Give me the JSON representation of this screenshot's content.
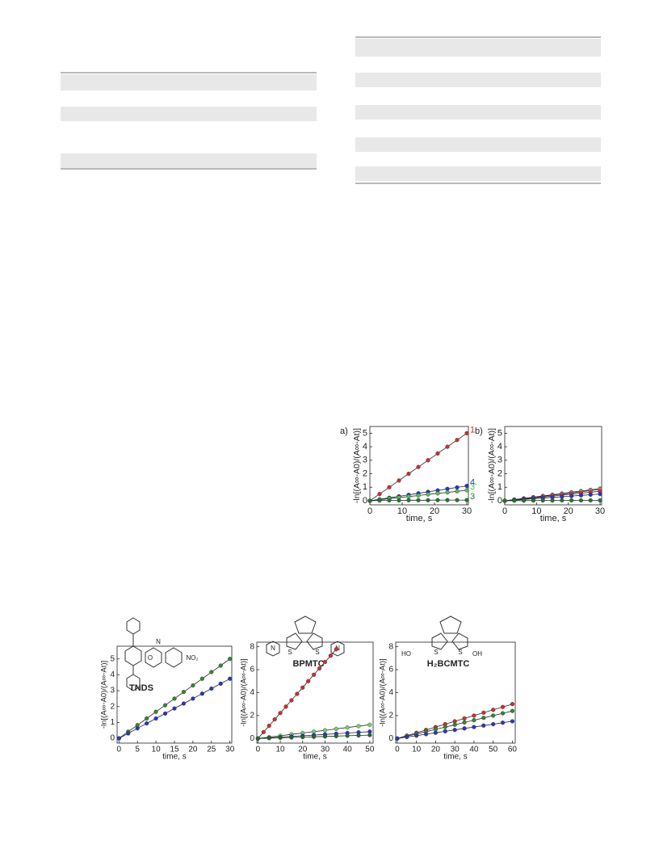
{
  "figure_top": {
    "panels": [
      {
        "type": "line",
        "label": "a)",
        "ylabel": "-ln[(A∞-A0)/(A∞-At)]",
        "xlabel": "time, s",
        "xlim": [
          0,
          30.5
        ],
        "ylim": [
          -0.3,
          5.5
        ],
        "xticks": [
          0,
          10,
          20,
          30
        ],
        "yticks": [
          0,
          1,
          2,
          3,
          4,
          5
        ],
        "series": [
          {
            "name": "1",
            "color": "#d42a2a",
            "x": [
              0,
              3,
              6,
              9,
              12,
              15,
              18,
              21,
              24,
              27,
              30
            ],
            "values": [
              0,
              0.5,
              1.0,
              1.5,
              2.0,
              2.5,
              3.0,
              3.5,
              4.0,
              4.5,
              5.0
            ]
          },
          {
            "name": "4",
            "color": "#2a34c8",
            "x": [
              0,
              3,
              6,
              9,
              12,
              15,
              18,
              21,
              24,
              27,
              30
            ],
            "values": [
              0,
              0.11,
              0.22,
              0.33,
              0.44,
              0.55,
              0.66,
              0.77,
              0.88,
              0.99,
              1.1
            ]
          },
          {
            "name": "3'",
            "color": "#4cc24c",
            "x": [
              0,
              3,
              6,
              9,
              12,
              15,
              18,
              21,
              24,
              27,
              30
            ],
            "values": [
              0,
              0.08,
              0.16,
              0.24,
              0.31,
              0.39,
              0.47,
              0.55,
              0.62,
              0.7,
              0.78
            ]
          },
          {
            "name": "3",
            "color": "#1f7a2a",
            "x": [
              0,
              3,
              6,
              9,
              12,
              15,
              18,
              21,
              24,
              27,
              30
            ],
            "values": [
              0,
              0.02,
              0.03,
              0.03,
              0.04,
              0.04,
              0.04,
              0.05,
              0.05,
              0.05,
              0.05
            ]
          }
        ]
      },
      {
        "type": "line",
        "label": "b)",
        "ylabel": "-ln[(A∞-A0)/(A∞-At)]",
        "xlabel": "time, s",
        "xlim": [
          0,
          30.5
        ],
        "ylim": [
          -0.3,
          5.5
        ],
        "xticks": [
          0,
          10,
          20,
          30
        ],
        "yticks": [
          0,
          1,
          2,
          3,
          4,
          5
        ],
        "series": [
          {
            "color": "#4cc24c",
            "x": [
              0,
              3,
              6,
              9,
              12,
              15,
              18,
              21,
              24,
              27,
              30
            ],
            "values": [
              0,
              0.09,
              0.18,
              0.27,
              0.36,
              0.45,
              0.54,
              0.63,
              0.72,
              0.81,
              0.9
            ]
          },
          {
            "color": "#e070c0",
            "x": [
              0,
              3,
              6,
              9,
              12,
              15,
              18,
              21,
              24,
              27,
              30
            ],
            "values": [
              0,
              0.08,
              0.17,
              0.25,
              0.33,
              0.42,
              0.5,
              0.58,
              0.67,
              0.75,
              0.83
            ]
          },
          {
            "color": "#d42a2a",
            "x": [
              0,
              3,
              6,
              9,
              12,
              15,
              18,
              21,
              24,
              27,
              30
            ],
            "values": [
              0,
              0.07,
              0.14,
              0.21,
              0.28,
              0.35,
              0.42,
              0.49,
              0.56,
              0.63,
              0.7
            ]
          },
          {
            "color": "#2a34c8",
            "x": [
              0,
              3,
              6,
              9,
              12,
              15,
              18,
              21,
              24,
              27,
              30
            ],
            "values": [
              0,
              0.05,
              0.1,
              0.15,
              0.2,
              0.25,
              0.3,
              0.35,
              0.4,
              0.45,
              0.5
            ]
          },
          {
            "color": "#1f7a2a",
            "x": [
              0,
              3,
              6,
              9,
              12,
              15,
              18,
              21,
              24,
              27,
              30
            ],
            "values": [
              0,
              0.01,
              0.01,
              0.02,
              0.02,
              0.02,
              0.03,
              0.03,
              0.03,
              0.03,
              0.03
            ]
          }
        ]
      }
    ]
  },
  "figure_bottom": {
    "panels": [
      {
        "type": "line",
        "compound": "TNDS",
        "ylabel": "-ln[(A∞-A0)/(A∞-At)]",
        "xlabel": "time, s",
        "xlim": [
          -0.5,
          30.5
        ],
        "ylim": [
          -0.3,
          5.8
        ],
        "xticks": [
          0,
          5,
          10,
          15,
          20,
          25,
          30
        ],
        "yticks": [
          0,
          1,
          2,
          3,
          4,
          5
        ],
        "annotations": [
          "N",
          "O",
          "NO₂"
        ],
        "series": [
          {
            "color": "#2e8a2e",
            "x": [
              0,
              2.5,
              5,
              7.5,
              10,
              12.5,
              15,
              17.5,
              20,
              22.5,
              25,
              27.5,
              30
            ],
            "values": [
              0,
              0.42,
              0.83,
              1.25,
              1.67,
              2.08,
              2.5,
              2.92,
              3.33,
              3.75,
              4.17,
              4.58,
              5.0
            ]
          },
          {
            "color": "#2a34c8",
            "x": [
              0,
              2.5,
              5,
              7.5,
              10,
              12.5,
              15,
              17.5,
              20,
              22.5,
              25,
              27.5,
              30
            ],
            "values": [
              0,
              0.31,
              0.63,
              0.94,
              1.25,
              1.56,
              1.88,
              2.19,
              2.5,
              2.81,
              3.13,
              3.44,
              3.75
            ]
          }
        ]
      },
      {
        "type": "line",
        "compound": "BPMTC",
        "ylabel": "-ln[(A∞-A0)/(A∞-At)]",
        "xlabel": "time, s",
        "xlim": [
          -0.5,
          51.5
        ],
        "ylim": [
          -0.4,
          8.4
        ],
        "xticks": [
          0,
          10,
          20,
          30,
          40,
          50
        ],
        "yticks": [
          0,
          2,
          4,
          6,
          8
        ],
        "annotations": [
          "S",
          "S",
          "N",
          "N"
        ],
        "series": [
          {
            "color": "#d42a2a",
            "x": [
              0,
              2.5,
              5,
              7.5,
              10,
              12.5,
              15,
              17.5,
              20,
              22.5,
              25,
              27.5,
              30,
              32.5,
              35
            ],
            "values": [
              0,
              0.56,
              1.11,
              1.67,
              2.22,
              2.78,
              3.33,
              3.89,
              4.44,
              5.0,
              5.56,
              6.11,
              6.67,
              7.22,
              7.78
            ]
          },
          {
            "color": "#6cd26c",
            "x": [
              0,
              5,
              10,
              15,
              20,
              25,
              30,
              35,
              40,
              45,
              50
            ],
            "values": [
              0,
              0.12,
              0.24,
              0.36,
              0.48,
              0.6,
              0.72,
              0.84,
              0.96,
              1.08,
              1.2
            ]
          },
          {
            "color": "#2a34c8",
            "x": [
              0,
              5,
              10,
              15,
              20,
              25,
              30,
              35,
              40,
              45,
              50
            ],
            "values": [
              0,
              0.06,
              0.12,
              0.18,
              0.24,
              0.3,
              0.36,
              0.42,
              0.48,
              0.54,
              0.6
            ]
          },
          {
            "color": "#1f6a2a",
            "x": [
              0,
              5,
              10,
              15,
              20,
              25,
              30,
              35,
              40,
              45,
              50
            ],
            "values": [
              0,
              0.03,
              0.06,
              0.09,
              0.12,
              0.15,
              0.18,
              0.21,
              0.24,
              0.27,
              0.3
            ]
          }
        ]
      },
      {
        "type": "line",
        "compound": "H₂BCMTC",
        "ylabel": "-ln[(A∞-A0)/(A∞-At)]",
        "xlabel": "time, s",
        "xlim": [
          -0.8,
          61.5
        ],
        "ylim": [
          -0.4,
          8.4
        ],
        "xticks": [
          0,
          10,
          20,
          30,
          40,
          50,
          60
        ],
        "yticks": [
          0,
          2,
          4,
          6,
          8
        ],
        "annotations": [
          "HO",
          "OH",
          "S",
          "S"
        ],
        "series": [
          {
            "color": "#d42a2a",
            "x": [
              0,
              5,
              10,
              15,
              20,
              25,
              30,
              35,
              40,
              45,
              50,
              55,
              60
            ],
            "values": [
              0,
              0.25,
              0.5,
              0.75,
              1,
              1.25,
              1.5,
              1.75,
              2,
              2.25,
              2.5,
              2.75,
              3
            ]
          },
          {
            "color": "#2e8a2e",
            "x": [
              0,
              5,
              10,
              15,
              20,
              25,
              30,
              35,
              40,
              45,
              50,
              55,
              60
            ],
            "values": [
              0,
              0.2,
              0.4,
              0.6,
              0.8,
              1,
              1.2,
              1.4,
              1.6,
              1.8,
              2,
              2.2,
              2.4
            ]
          },
          {
            "color": "#2a34c8",
            "x": [
              0,
              5,
              10,
              15,
              20,
              25,
              30,
              35,
              40,
              45,
              50,
              55,
              60
            ],
            "values": [
              0,
              0.13,
              0.25,
              0.38,
              0.5,
              0.63,
              0.75,
              0.88,
              1,
              1.13,
              1.25,
              1.38,
              1.5
            ]
          }
        ]
      }
    ]
  }
}
